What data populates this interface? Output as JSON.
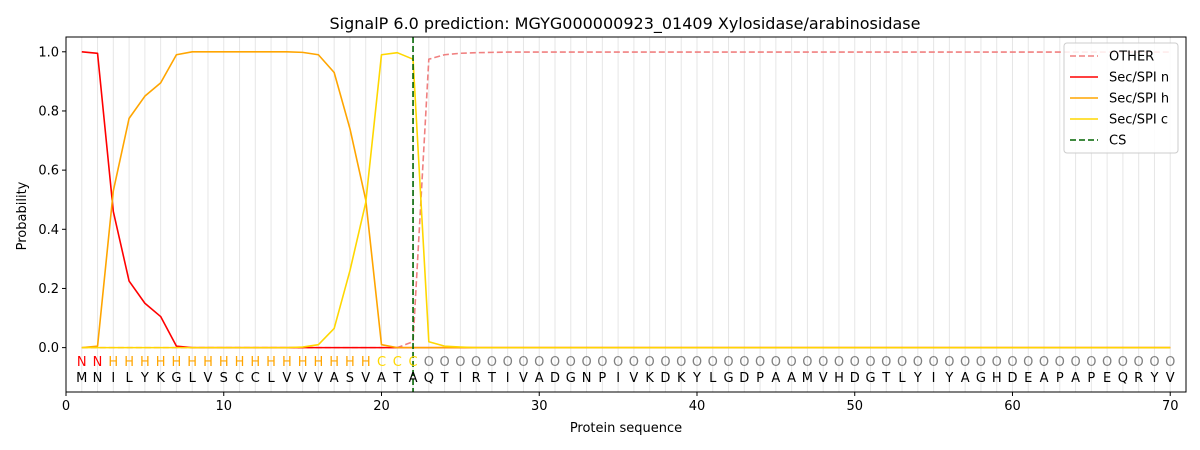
{
  "chart_data": {
    "type": "line",
    "title": "SignalP 6.0 prediction: MGYG000000923_01409 Xylosidase/arabinosidase",
    "xlabel": "Protein sequence",
    "ylabel": "Probability",
    "xlim": [
      0,
      71
    ],
    "ylim": [
      -0.15,
      1.05
    ],
    "xticks": [
      0,
      10,
      20,
      30,
      40,
      50,
      60,
      70
    ],
    "yticks": [
      0.0,
      0.2,
      0.4,
      0.6,
      0.8,
      1.0
    ],
    "xtick_labels": [
      "0",
      "10",
      "20",
      "30",
      "40",
      "50",
      "60",
      "70"
    ],
    "ytick_labels": [
      "0.0",
      "0.2",
      "0.4",
      "0.6",
      "0.8",
      "1.0"
    ],
    "legend_position": "top-right",
    "sequence": [
      "M",
      "N",
      "I",
      "L",
      "Y",
      "K",
      "G",
      "L",
      "V",
      "S",
      "C",
      "C",
      "L",
      "V",
      "V",
      "V",
      "A",
      "S",
      "V",
      "A",
      "T",
      "A",
      "Q",
      "T",
      "I",
      "R",
      "T",
      "I",
      "V",
      "A",
      "D",
      "G",
      "N",
      "P",
      "I",
      "V",
      "K",
      "D",
      "K",
      "Y",
      "L",
      "G",
      "D",
      "P",
      "A",
      "A",
      "M",
      "V",
      "H",
      "D",
      "G",
      "T",
      "L",
      "Y",
      "I",
      "Y",
      "A",
      "G",
      "H",
      "D",
      "E",
      "A",
      "P",
      "A",
      "P",
      "E",
      "Q",
      "R",
      "Y",
      "V"
    ],
    "labels": [
      "N",
      "N",
      "H",
      "H",
      "H",
      "H",
      "H",
      "H",
      "H",
      "H",
      "H",
      "H",
      "H",
      "H",
      "H",
      "H",
      "H",
      "H",
      "H",
      "C",
      "C",
      "C",
      "O",
      "O",
      "O",
      "O",
      "O",
      "O",
      "O",
      "O",
      "O",
      "O",
      "O",
      "O",
      "O",
      "O",
      "O",
      "O",
      "O",
      "O",
      "O",
      "O",
      "O",
      "O",
      "O",
      "O",
      "O",
      "O",
      "O",
      "O",
      "O",
      "O",
      "O",
      "O",
      "O",
      "O",
      "O",
      "O",
      "O",
      "O",
      "O",
      "O",
      "O",
      "O",
      "O",
      "O",
      "O",
      "O",
      "O",
      "O"
    ],
    "label_colors": {
      "N": "#ff0000",
      "H": "#ffa500",
      "C": "#ffd700",
      "O": "#808080"
    },
    "x": [
      1,
      2,
      3,
      4,
      5,
      6,
      7,
      8,
      9,
      10,
      11,
      12,
      13,
      14,
      15,
      16,
      17,
      18,
      19,
      20,
      21,
      22,
      23,
      24,
      25,
      26,
      27,
      28,
      29,
      30,
      31,
      32,
      33,
      34,
      35,
      36,
      37,
      38,
      39,
      40,
      41,
      42,
      43,
      44,
      45,
      46,
      47,
      48,
      49,
      50,
      51,
      52,
      53,
      54,
      55,
      56,
      57,
      58,
      59,
      60,
      61,
      62,
      63,
      64,
      65,
      66,
      67,
      68,
      69,
      70
    ],
    "series": [
      {
        "name": "OTHER",
        "color": "#f08080",
        "dash": "dashed",
        "values": [
          0.0,
          0.0,
          0.0,
          0.0,
          0.0,
          0.0,
          0.0,
          0.0,
          0.0,
          0.0,
          0.0,
          0.0,
          0.0,
          0.0,
          0.0,
          0.0,
          0.0,
          0.0,
          0.0,
          0.0,
          0.0,
          0.02,
          0.975,
          0.99,
          0.995,
          0.997,
          0.998,
          0.999,
          0.999,
          0.999,
          0.999,
          0.999,
          0.999,
          0.999,
          0.999,
          0.999,
          0.999,
          0.999,
          0.999,
          0.999,
          0.999,
          0.999,
          0.999,
          0.999,
          0.999,
          0.999,
          0.999,
          0.999,
          0.999,
          0.999,
          0.999,
          0.999,
          0.999,
          0.999,
          0.999,
          0.999,
          0.999,
          0.999,
          0.999,
          0.999,
          0.999,
          0.999,
          0.999,
          0.999,
          0.999,
          0.999,
          0.999,
          0.999,
          0.999,
          0.999
        ]
      },
      {
        "name": "Sec/SPI n",
        "color": "#ff0000",
        "dash": "solid",
        "values": [
          1.0,
          0.995,
          0.46,
          0.225,
          0.15,
          0.105,
          0.005,
          0.0,
          0.0,
          0.0,
          0.0,
          0.0,
          0.0,
          0.0,
          0.0,
          0.0,
          0.0,
          0.0,
          0.0,
          0.0,
          0.0,
          0.0,
          0.0,
          0.0,
          0.0,
          0.0,
          0.0,
          0.0,
          0.0,
          0.0,
          0.0,
          0.0,
          0.0,
          0.0,
          0.0,
          0.0,
          0.0,
          0.0,
          0.0,
          0.0,
          0.0,
          0.0,
          0.0,
          0.0,
          0.0,
          0.0,
          0.0,
          0.0,
          0.0,
          0.0,
          0.0,
          0.0,
          0.0,
          0.0,
          0.0,
          0.0,
          0.0,
          0.0,
          0.0,
          0.0,
          0.0,
          0.0,
          0.0,
          0.0,
          0.0,
          0.0,
          0.0,
          0.0,
          0.0,
          0.0
        ]
      },
      {
        "name": "Sec/SPI h",
        "color": "#ffa500",
        "dash": "solid",
        "values": [
          0.0,
          0.005,
          0.53,
          0.775,
          0.85,
          0.895,
          0.99,
          1.0,
          1.0,
          1.0,
          1.0,
          1.0,
          1.0,
          1.0,
          0.998,
          0.99,
          0.93,
          0.74,
          0.5,
          0.01,
          0.0,
          0.0,
          0.0,
          0.0,
          0.0,
          0.0,
          0.0,
          0.0,
          0.0,
          0.0,
          0.0,
          0.0,
          0.0,
          0.0,
          0.0,
          0.0,
          0.0,
          0.0,
          0.0,
          0.0,
          0.0,
          0.0,
          0.0,
          0.0,
          0.0,
          0.0,
          0.0,
          0.0,
          0.0,
          0.0,
          0.0,
          0.0,
          0.0,
          0.0,
          0.0,
          0.0,
          0.0,
          0.0,
          0.0,
          0.0,
          0.0,
          0.0,
          0.0,
          0.0,
          0.0,
          0.0,
          0.0,
          0.0,
          0.0,
          0.0
        ]
      },
      {
        "name": "Sec/SPI c",
        "color": "#ffd700",
        "dash": "solid",
        "values": [
          0.0,
          0.0,
          0.0,
          0.0,
          0.0,
          0.0,
          0.0,
          0.0,
          0.0,
          0.0,
          0.0,
          0.0,
          0.0,
          0.0,
          0.002,
          0.01,
          0.065,
          0.26,
          0.49,
          0.99,
          0.997,
          0.975,
          0.02,
          0.005,
          0.002,
          0.0,
          0.0,
          0.0,
          0.0,
          0.0,
          0.0,
          0.0,
          0.0,
          0.0,
          0.0,
          0.0,
          0.0,
          0.0,
          0.0,
          0.0,
          0.0,
          0.0,
          0.0,
          0.0,
          0.0,
          0.0,
          0.0,
          0.0,
          0.0,
          0.0,
          0.0,
          0.0,
          0.0,
          0.0,
          0.0,
          0.0,
          0.0,
          0.0,
          0.0,
          0.0,
          0.0,
          0.0,
          0.0,
          0.0,
          0.0,
          0.0,
          0.0,
          0.0,
          0.0,
          0.0
        ]
      }
    ],
    "cleavage_site": {
      "name": "CS",
      "x": 22,
      "color": "#006400",
      "dash": "dashed"
    }
  }
}
